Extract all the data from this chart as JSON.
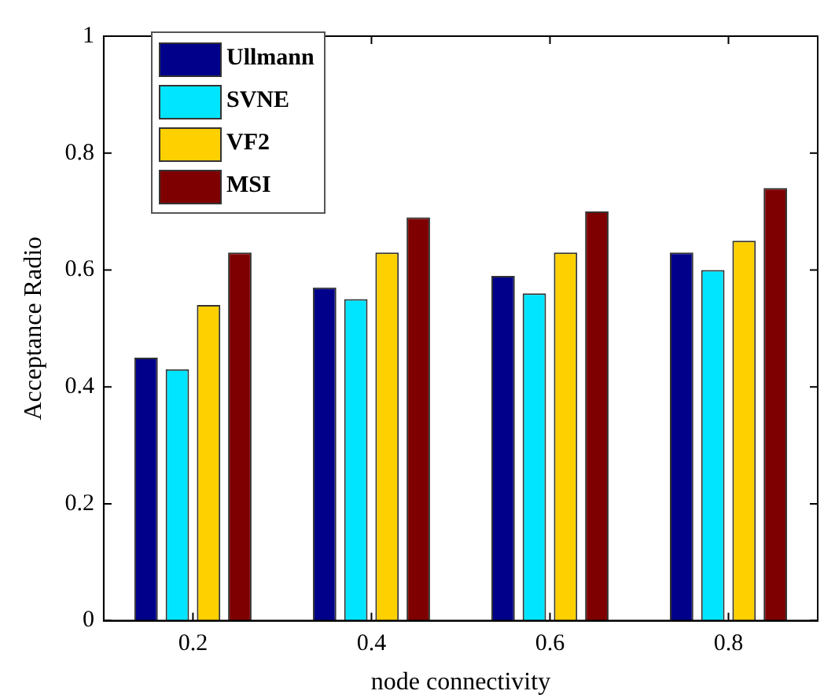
{
  "chart_data": {
    "type": "bar",
    "xlabel": "node connectivity",
    "ylabel": "Acceptance Radio",
    "categories": [
      "0.2",
      "0.4",
      "0.6",
      "0.8"
    ],
    "series": [
      {
        "name": "Ullmann",
        "color": "#00008b",
        "values": [
          0.45,
          0.57,
          0.59,
          0.63
        ]
      },
      {
        "name": "SVNE",
        "color": "#00e5ff",
        "values": [
          0.43,
          0.55,
          0.56,
          0.6
        ]
      },
      {
        "name": "VF2",
        "color": "#ffd000",
        "values": [
          0.54,
          0.63,
          0.63,
          0.65
        ]
      },
      {
        "name": "MSI",
        "color": "#7f0000",
        "values": [
          0.63,
          0.69,
          0.7,
          0.74
        ]
      }
    ],
    "ylim": [
      0,
      1
    ],
    "yticks": [
      0,
      0.2,
      0.4,
      0.6,
      0.8,
      1
    ],
    "grid": false,
    "legend": "top left"
  }
}
